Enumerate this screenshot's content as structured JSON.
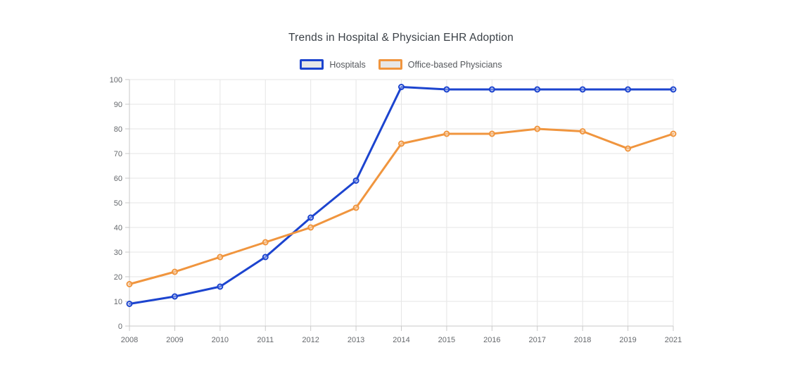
{
  "chart_data": {
    "type": "line",
    "title": "Trends in Hospital & Physician EHR Adoption",
    "xlabel": "",
    "ylabel": "",
    "categories": [
      "2008",
      "2009",
      "2010",
      "2011",
      "2012",
      "2013",
      "2014",
      "2015",
      "2016",
      "2017",
      "2018",
      "2019",
      "2021"
    ],
    "series": [
      {
        "name": "Hospitals",
        "color": "#1c44cf",
        "values": [
          9,
          12,
          16,
          28,
          44,
          59,
          97,
          96,
          96,
          96,
          96,
          96,
          96
        ]
      },
      {
        "name": "Office-based Physicians",
        "color": "#f0953e",
        "values": [
          17,
          22,
          28,
          34,
          40,
          48,
          74,
          78,
          78,
          80,
          79,
          72,
          78
        ]
      }
    ],
    "ylim": [
      0,
      100
    ],
    "ytick_step": 10,
    "grid": true,
    "legend_position": "top",
    "colors": {
      "gridline": "#e6e6e6",
      "axis": "#c9c9c9",
      "tick_text": "#66696d",
      "legend_swatch_fill": "#e7e7e7"
    }
  }
}
